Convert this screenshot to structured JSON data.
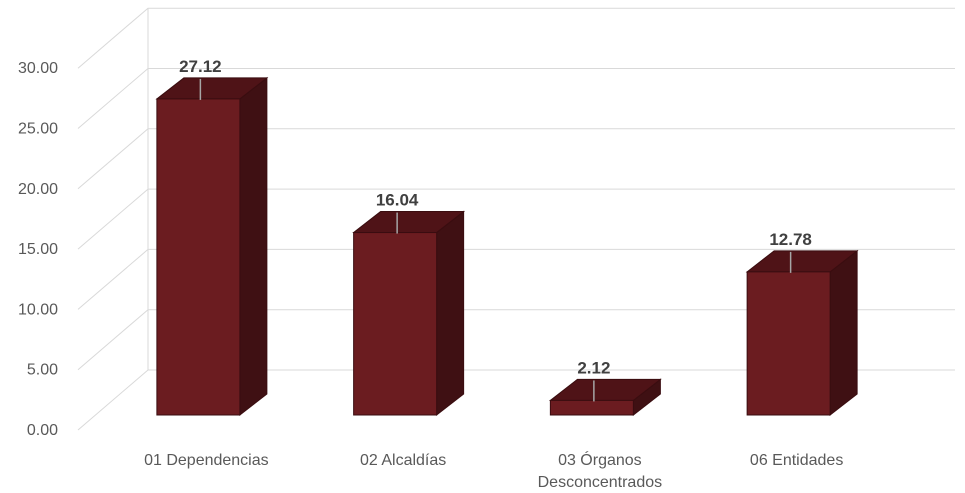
{
  "chart_data": {
    "type": "bar",
    "style": "3d-column",
    "categories": [
      "01 Dependencias",
      "02 Alcaldías",
      "03 Órganos Desconcentrados",
      "06 Entidades"
    ],
    "category_lines": [
      [
        "01 Dependencias"
      ],
      [
        "02 Alcaldías"
      ],
      [
        "03 Órganos",
        "Desconcentrados"
      ],
      [
        "06 Entidades"
      ]
    ],
    "values": [
      27.12,
      16.04,
      2.12,
      12.78
    ],
    "data_labels": [
      "27.12",
      "16.04",
      "2.12",
      "12.78"
    ],
    "y_ticks": [
      "0.00",
      "5.00",
      "10.00",
      "15.00",
      "20.00",
      "25.00",
      "30.00"
    ],
    "ylim": [
      0,
      30
    ],
    "grid": true,
    "legend": "none",
    "colors": {
      "bar_front": "#6b1c20",
      "bar_top": "#4f1317",
      "bar_side": "#3f1013",
      "bar_edge": "#3a0d10",
      "grid": "#d9d9d9",
      "leader": "#a6a6a6"
    }
  }
}
